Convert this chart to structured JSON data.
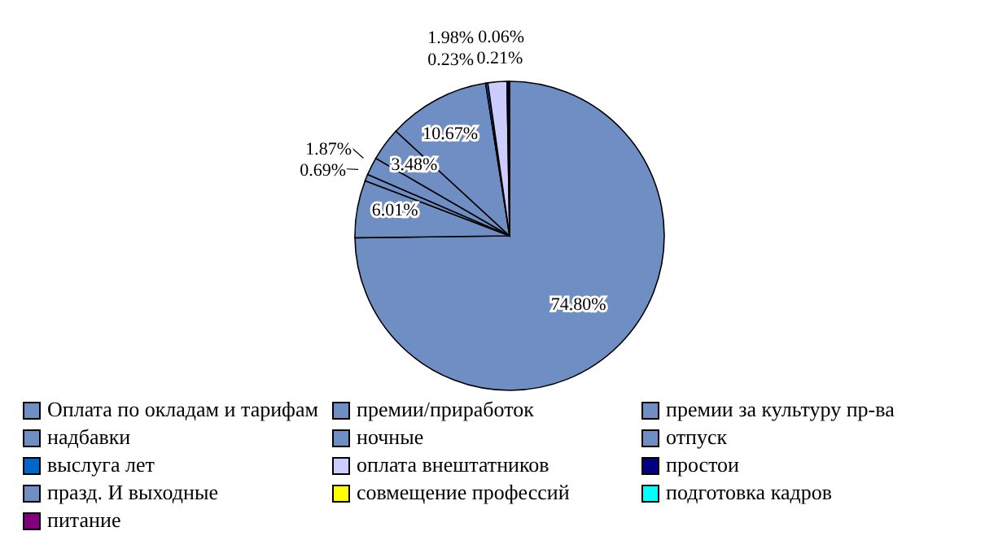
{
  "chart_data": {
    "type": "pie",
    "categories": [
      "Оплата по окладам и тарифам",
      "премии/приработок",
      "премии за культуру пр-ва",
      " надбавки",
      "ночные",
      "отпуск",
      "выслуга лет",
      "оплата внештатников",
      "простои",
      "празд. И выходные",
      "совмещение профессий",
      "подготовка кадров",
      "питание"
    ],
    "values": [
      74.8,
      6.01,
      0.69,
      1.87,
      3.48,
      10.67,
      0.23,
      1.98,
      0.21,
      0.06,
      0,
      0,
      0
    ],
    "value_labels": [
      "74.80%",
      "6.01%",
      "0.69%",
      "1.87%",
      "3.48%",
      "10.67%",
      "0.23%",
      "1.98%",
      "0.21%",
      "0.06%",
      null,
      null,
      null
    ],
    "colors": [
      "#6f8fc4",
      "#6f8fc4",
      "#6f8fc4",
      "#6f8fc4",
      "#6f8fc4",
      "#6f8fc4",
      "#0066cc",
      "#ccccff",
      "#000080",
      "#6f8fc4",
      "#ffff00",
      "#00ffff",
      "#800080"
    ],
    "legend": "bottom"
  }
}
